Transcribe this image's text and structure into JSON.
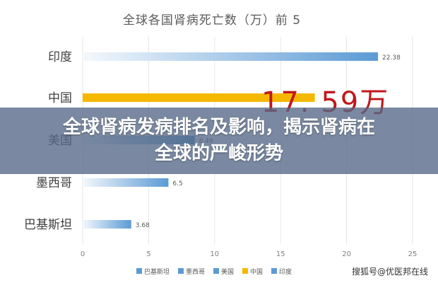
{
  "chart_data": {
    "type": "bar",
    "orientation": "horizontal",
    "title": "全球各国肾病死亡数（万）前 5",
    "categories": [
      "印度",
      "中国",
      "美国",
      "墨西哥",
      "巴基斯坦"
    ],
    "values": [
      22.38,
      17.59,
      8.49,
      6.5,
      3.68
    ],
    "value_labels": [
      "22.38",
      "",
      "8.49",
      "6.5",
      "3.68"
    ],
    "colors": [
      "#5b9bd5",
      "#f5b800",
      "#5b9bd5",
      "#5b9bd5",
      "#5b9bd5"
    ],
    "xlim": [
      0,
      25
    ],
    "xticks": [
      "0",
      "5",
      "10",
      "15",
      "20",
      "25"
    ],
    "grid": true,
    "legend_position": "bottom",
    "legend": [
      "巴基斯坦",
      "墨西哥",
      "美国",
      "中国",
      "印度"
    ],
    "legend_colors": [
      "#5b9bd5",
      "#5b9bd5",
      "#5b9bd5",
      "#f5b800",
      "#5b9bd5"
    ],
    "annotation": "17. 59万"
  },
  "overlay": {
    "line1": "全球肾病发病排名及影响，揭示肾病在",
    "line2": "全球的严峻形势"
  },
  "watermark": "搜狐号@优医邦在线"
}
